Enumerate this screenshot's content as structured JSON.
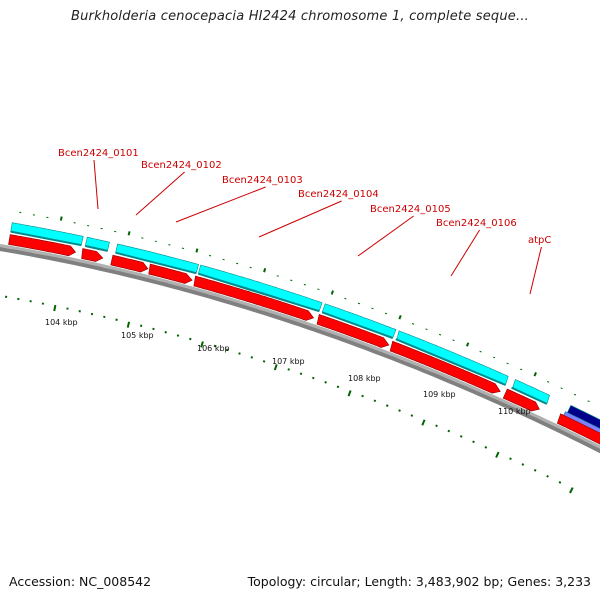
{
  "header": {
    "title": "Burkholderia cenocepacia HI2424 chromosome 1, complete seque..."
  },
  "footer": {
    "accession": "Accession: NC_008542",
    "summary": "Topology: circular; Length: 3,483,902 bp; Genes: 3,233"
  },
  "genes": [
    {
      "id": "Bcen2424_0101",
      "label": "Bcen2424_0101"
    },
    {
      "id": "Bcen2424_0102",
      "label": "Bcen2424_0102"
    },
    {
      "id": "Bcen2424_0103",
      "label": "Bcen2424_0103"
    },
    {
      "id": "Bcen2424_0104",
      "label": "Bcen2424_0104"
    },
    {
      "id": "Bcen2424_0105",
      "label": "Bcen2424_0105"
    },
    {
      "id": "Bcen2424_0106",
      "label": "Bcen2424_0106"
    },
    {
      "id": "atpC",
      "label": "atpC"
    }
  ],
  "scale": {
    "labels": [
      "104 kbp",
      "105 kbp",
      "106 kbp",
      "107 kbp",
      "108 kbp",
      "109 kbp",
      "110 kbp"
    ]
  },
  "colors": {
    "cds_top": "#00ffff",
    "cds_bottom": "#ff0000",
    "backbone": "#808080",
    "label": "#cc0000",
    "tick": "#006400",
    "neighbor_gene": "#00008b",
    "neighbor_gene_light": "#8080ff"
  }
}
